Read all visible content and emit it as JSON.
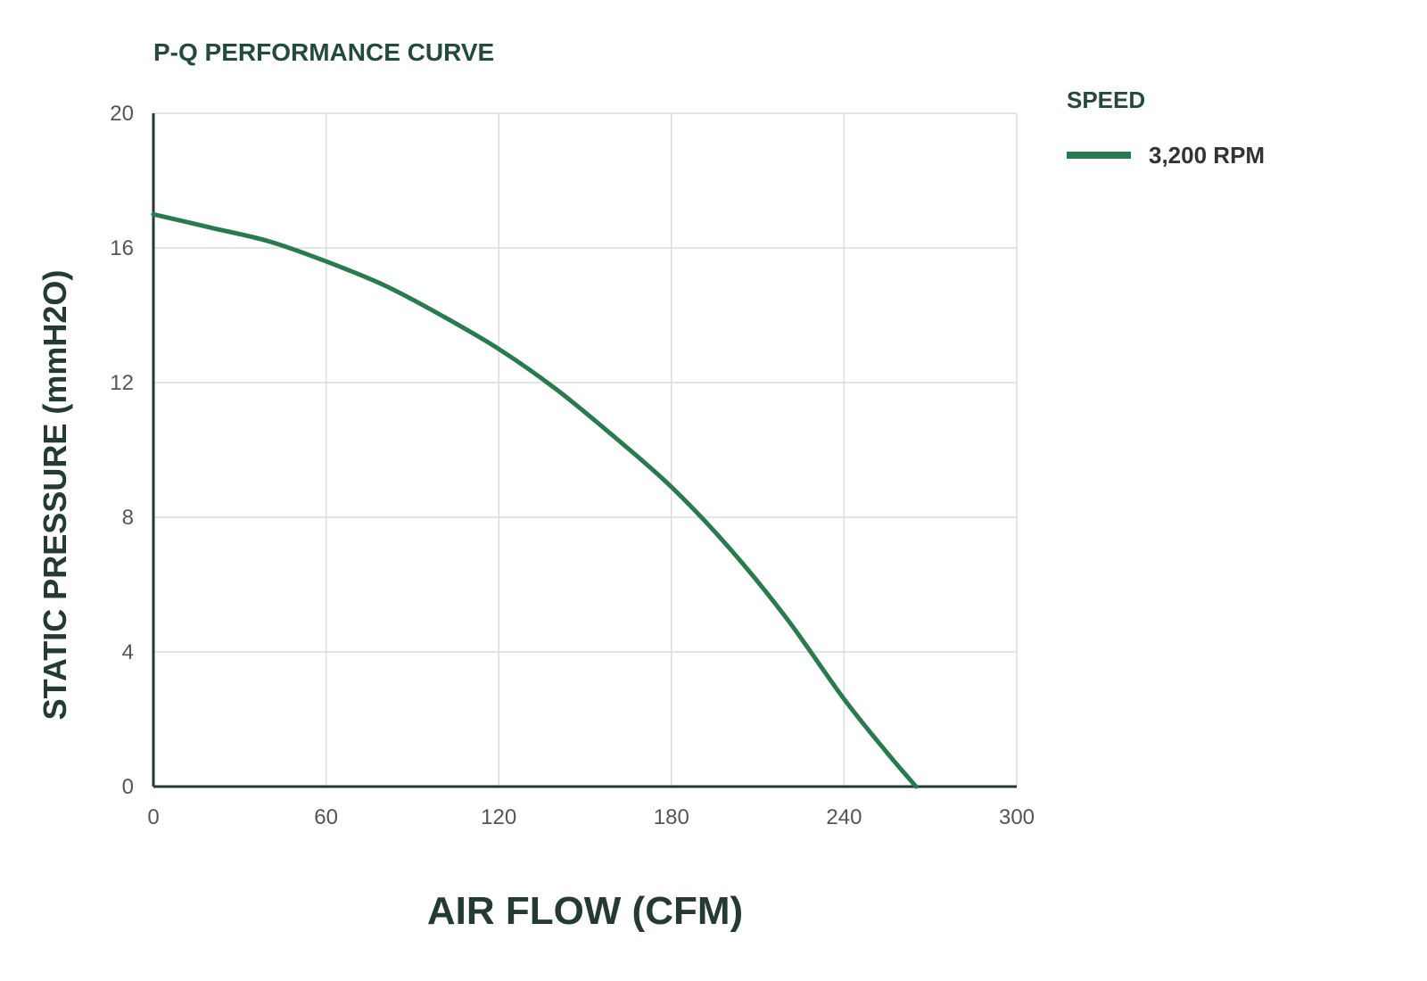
{
  "chart_data": {
    "type": "line",
    "title": "P-Q PERFORMANCE CURVE",
    "xlabel": "AIR FLOW (CFM)",
    "ylabel": "STATIC PRESSURE (mmH2O)",
    "xlim": [
      0,
      300
    ],
    "ylim": [
      0,
      20
    ],
    "xticks": [
      0,
      60,
      120,
      180,
      240,
      300
    ],
    "yticks": [
      0,
      4,
      8,
      12,
      16,
      20
    ],
    "grid": true,
    "legend": {
      "title": "SPEED",
      "position": "right"
    },
    "series": [
      {
        "name": "3,200 RPM",
        "color": "#2a7a50",
        "x": [
          0,
          20,
          40,
          60,
          80,
          100,
          120,
          140,
          160,
          180,
          200,
          220,
          240,
          255,
          265
        ],
        "y": [
          17.0,
          16.6,
          16.2,
          15.6,
          14.9,
          14.0,
          13.0,
          11.8,
          10.4,
          8.9,
          7.1,
          5.0,
          2.6,
          1.0,
          0.0
        ]
      }
    ]
  }
}
